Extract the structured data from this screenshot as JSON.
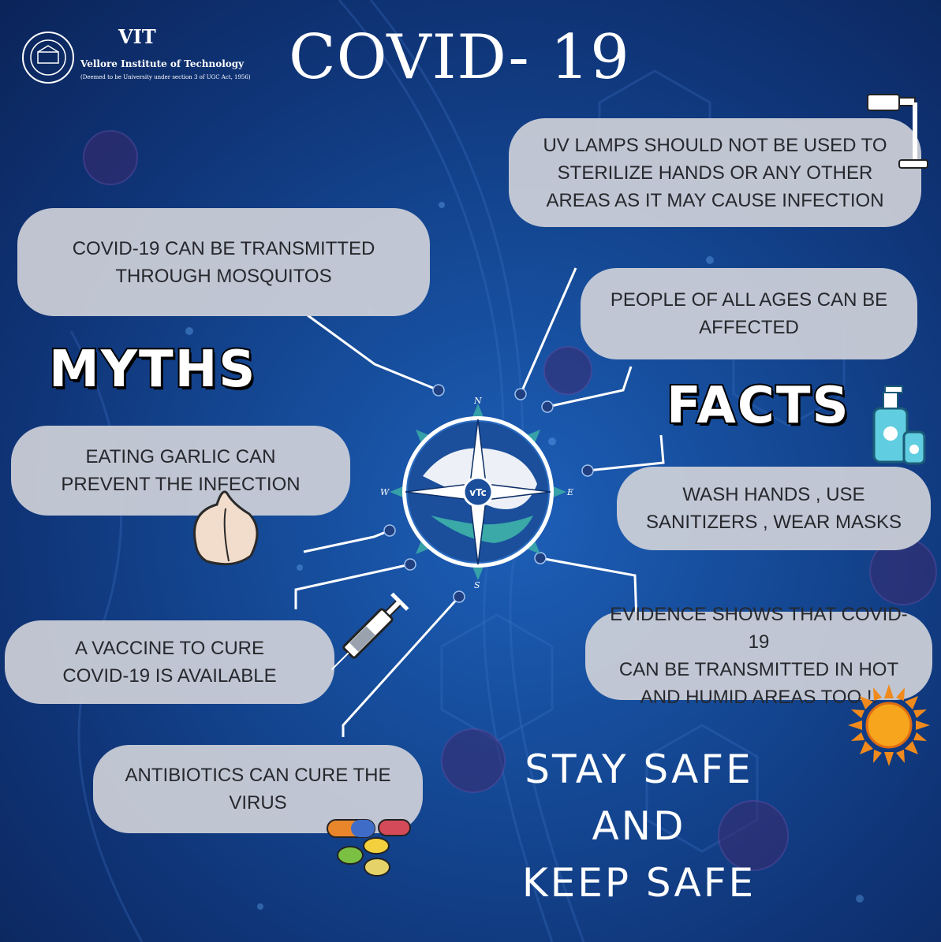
{
  "header": {
    "title": "COVID- 19",
    "logo": {
      "short": "VIT",
      "name": "Vellore Institute of Technology",
      "subtitle": "(Deemed to be University under section 3 of UGC Act, 1956)"
    }
  },
  "headings": {
    "myths": "MYTHS",
    "facts": "FACTS"
  },
  "myths": [
    "COVID-19 CAN BE TRANSMITTED\nTHROUGH MOSQUITOS",
    "EATING GARLIC CAN\nPREVENT THE INFECTION",
    "A VACCINE TO CURE\nCOVID-19 IS AVAILABLE",
    "ANTIBIOTICS CAN CURE THE\nVIRUS"
  ],
  "facts": [
    "UV LAMPS SHOULD NOT BE USED TO\nSTERILIZE HANDS OR ANY OTHER\nAREAS AS IT MAY CAUSE INFECTION",
    "PEOPLE OF ALL AGES CAN BE\nAFFECTED",
    "WASH HANDS , USE\nSANITIZERS ,  WEAR MASKS",
    "EVIDENCE SHOWS THAT COVID-19\nCAN BE TRANSMITTED IN HOT\nAND HUMID AREAS TOO !!"
  ],
  "slogan": {
    "line1": "STAY SAFE",
    "line2": "AND",
    "line3": "KEEP SAFE"
  },
  "compass": {
    "n": "N",
    "s": "S",
    "e": "E",
    "w": "W",
    "center": "vTc"
  },
  "icons": [
    "uv-lamp-icon",
    "garlic-icon",
    "syringe-icon",
    "pills-icon",
    "sanitizer-icon",
    "sun-icon"
  ],
  "colors": {
    "background": "#154a97",
    "bubble": "#cdd0d8",
    "text": "#26282d",
    "accent": "#3aa9a8"
  }
}
